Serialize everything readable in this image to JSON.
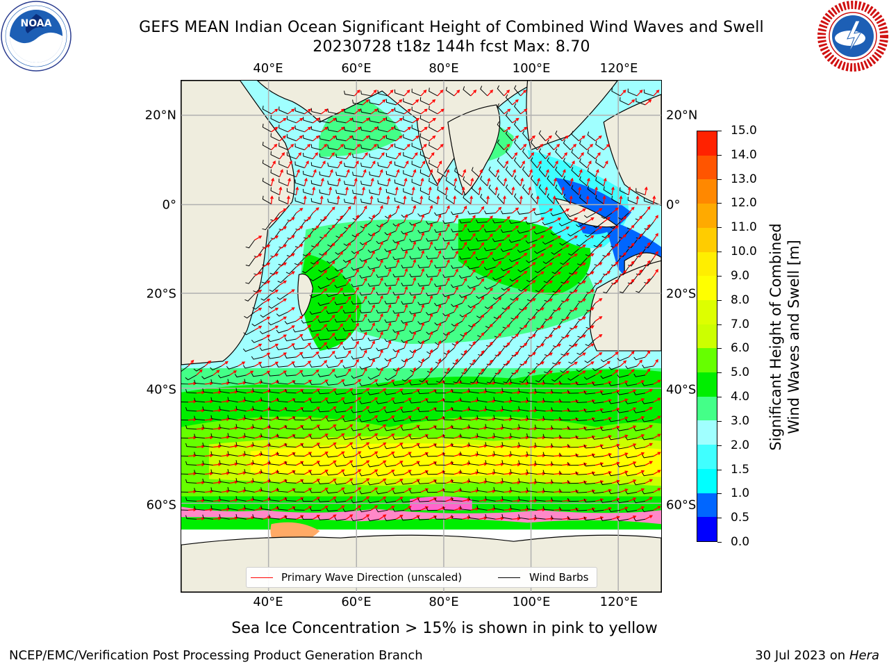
{
  "header": {
    "title_line1": "GEFS MEAN Indian Ocean Significant Height of Combined Wind Waves and Swell",
    "title_line2": "20230728 t18z 144h fcst   Max: 8.70"
  },
  "logos": {
    "noaa": "NOAA",
    "noaa_ring_text": "NATIONAL OCEANIC AND ATMOSPHERIC ADMINISTRATION · U.S. DEPARTMENT OF COMMERCE",
    "nws_ring_text": "NATIONAL WEATHER SERVICE"
  },
  "map": {
    "lon_labels": [
      "40°E",
      "60°E",
      "80°E",
      "100°E",
      "120°E"
    ],
    "lat_labels": [
      "20°N",
      "0°",
      "20°S",
      "40°S",
      "60°S"
    ],
    "colors": {
      "land": "#efedde",
      "coastline": "#000000",
      "gridline": "#b0b0b0",
      "wave_direction": "#ff0000",
      "wind_barb": "#000000"
    }
  },
  "legend": {
    "wave_label": "Primary Wave Direction (unscaled)",
    "wind_label": "Wind Barbs"
  },
  "colorbar": {
    "title_line1": "Significant Height of Combined",
    "title_line2": "Wind Waves and Swell [m]",
    "tick_labels": [
      "0.0",
      "0.5",
      "1.0",
      "1.5",
      "2.0",
      "3.0",
      "4.0",
      "5.0",
      "6.0",
      "7.0",
      "8.0",
      "9.0",
      "10.0",
      "11.0",
      "12.0",
      "13.0",
      "14.0",
      "15.0"
    ],
    "colors": [
      "#0000ff",
      "#0066ff",
      "#00ffff",
      "#40ffff",
      "#a0ffff",
      "#44ff88",
      "#00ee00",
      "#66ff00",
      "#ccff00",
      "#ddff00",
      "#ffff00",
      "#ffee00",
      "#ffcc00",
      "#ffaa00",
      "#ff8800",
      "#ff5500",
      "#ff2200"
    ]
  },
  "footer": {
    "sea_ice_note": "Sea Ice Concentration > 15% is shown in pink to yellow",
    "branch": "NCEP/EMC/Verification Post Processing Product Generation Branch",
    "date": "30 Jul 2023 on",
    "machine": "Hera"
  }
}
